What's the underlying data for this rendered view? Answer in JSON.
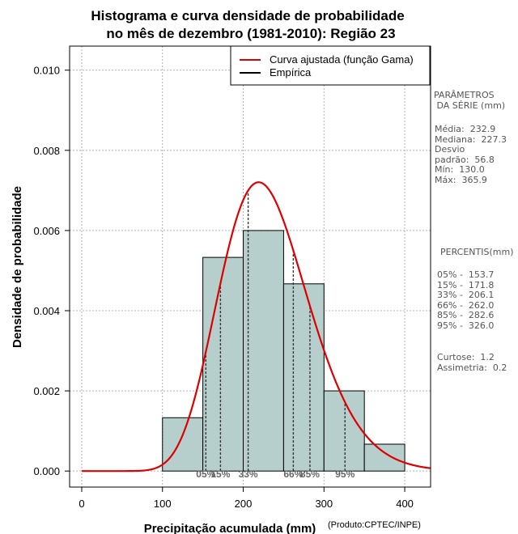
{
  "chart_data": {
    "type": "bar",
    "title_line1": "Histograma e curva densidade de probabilidade",
    "title_line2": "no mês de dezembro (1981-2010): Região 23",
    "xlabel": "Precipitação acumulada (mm)",
    "ylabel": "Densidade de probabilidade",
    "credit": "(Produto:CPTEC/INPE)",
    "xlim": [
      -15,
      432
    ],
    "ylim": [
      -0.0004,
      0.0106
    ],
    "xticks": [
      0,
      100,
      200,
      300,
      400
    ],
    "yticks": [
      0.0,
      0.002,
      0.004,
      0.006,
      0.008,
      0.01
    ],
    "ytick_labels": [
      "0.000",
      "0.002",
      "0.004",
      "0.006",
      "0.008",
      "0.010"
    ],
    "grid": true,
    "bins": [
      {
        "start": 100,
        "end": 150,
        "density": 0.00133
      },
      {
        "start": 150,
        "end": 200,
        "density": 0.00533
      },
      {
        "start": 200,
        "end": 250,
        "density": 0.006
      },
      {
        "start": 250,
        "end": 300,
        "density": 0.00467
      },
      {
        "start": 300,
        "end": 350,
        "density": 0.002
      },
      {
        "start": 350,
        "end": 400,
        "density": 0.00067
      }
    ],
    "fitted_curve": {
      "name": "Curva ajustada (função Gama)",
      "distribution": "gamma",
      "mean": 232.9,
      "sd": 56.8,
      "color": "#dd0000"
    },
    "empirical": {
      "name": "Empírica",
      "color": "#000000"
    },
    "legend_position": "top-right",
    "percentile_markers": [
      {
        "label": "05%",
        "value": 153.7
      },
      {
        "label": "15%",
        "value": 171.8
      },
      {
        "label": "33%",
        "value": 206.1
      },
      {
        "label": "66%",
        "value": 262.0
      },
      {
        "label": "85%",
        "value": 282.6
      },
      {
        "label": "95%",
        "value": 326.0
      }
    ],
    "bar_color": "#b6cfcd"
  },
  "side_panel": {
    "params_title": "PARÂMETROS\n DA SÉRIE (mm)",
    "params_body": "Média:  232.9\nMediana:  227.3\nDesvio\npadrão:  56.8\nMín:  130.0\nMáx:  365.9",
    "percentis_title": "PERCENTIS(mm)",
    "percentis_body": "05% -  153.7\n15% -  171.8\n33% -  206.1\n66% -  262.0\n85% -  282.6\n95% -  326.0",
    "moments_body": "Curtose:  1.2\nAssimetria:  0.2"
  }
}
